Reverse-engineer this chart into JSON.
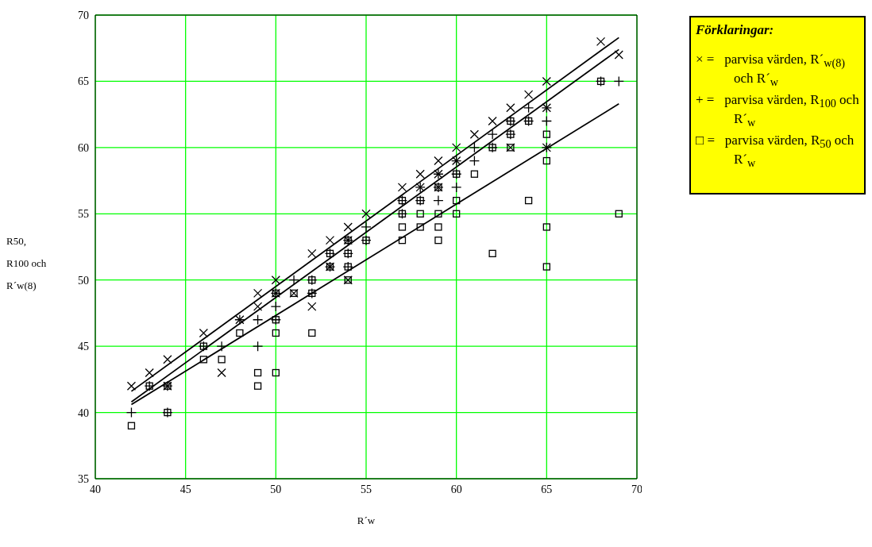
{
  "chart_data": {
    "type": "scatter",
    "xlabel": "R´w",
    "ylabel": "R50,\nR100 och\nR´w(8)",
    "grid": true,
    "annotations": [
      "Förklaringar:",
      "× =   parvisa värden, R´$_{w(8)}$ och R´$_{w}$",
      "+ =   parvisa värden, R$_{100}$ och R´$_{w}$",
      "□ =   parvisa värden, R$_{50}$ och R´$_{w}$"
    ],
    "xlim": [
      40,
      70
    ],
    "xticks": [
      40,
      45,
      50,
      55,
      60,
      65,
      70
    ],
    "ylim": [
      35,
      70
    ],
    "yticks": [
      35,
      40,
      45,
      50,
      55,
      60,
      65,
      70
    ],
    "series": [
      {
        "color": "#000000",
        "marker": "x",
        "x": [
          42,
          43,
          44,
          44,
          46,
          47,
          48,
          49,
          49,
          50,
          50,
          51,
          52,
          52,
          53,
          53,
          54,
          54,
          54,
          55,
          57,
          58,
          58,
          59,
          59,
          59,
          60,
          60,
          61,
          62,
          63,
          63,
          64,
          65,
          65,
          65,
          68,
          69
        ],
        "values": [
          42,
          43,
          44,
          42,
          46,
          43,
          47,
          49,
          48,
          50,
          49,
          49,
          52,
          48,
          53,
          51,
          54,
          53,
          50,
          55,
          57,
          58,
          57,
          59,
          58,
          57,
          60,
          59,
          61,
          62,
          63,
          60,
          64,
          65,
          63,
          60,
          68,
          67
        ]
      },
      {
        "color": "#000000",
        "marker": "cross",
        "x": [
          42,
          43,
          44,
          44,
          46,
          47,
          48,
          49,
          49,
          50,
          50,
          50,
          51,
          52,
          52,
          53,
          53,
          54,
          54,
          54,
          55,
          55,
          57,
          57,
          58,
          58,
          59,
          59,
          59,
          60,
          60,
          60,
          61,
          61,
          62,
          62,
          63,
          63,
          64,
          64,
          65,
          65,
          65,
          68,
          69
        ],
        "values": [
          40,
          42,
          42,
          40,
          45,
          45,
          47,
          47,
          45,
          49,
          48,
          47,
          50,
          50,
          49,
          52,
          51,
          53,
          52,
          51,
          54,
          53,
          56,
          55,
          57,
          56,
          58,
          57,
          56,
          59,
          58,
          57,
          60,
          59,
          61,
          60,
          62,
          61,
          63,
          62,
          63,
          62,
          60,
          65,
          65
        ]
      },
      {
        "color": "#000000",
        "marker": "square",
        "x": [
          42,
          43,
          44,
          44,
          46,
          46,
          47,
          48,
          49,
          49,
          50,
          50,
          50,
          50,
          51,
          52,
          52,
          52,
          53,
          53,
          54,
          54,
          54,
          54,
          55,
          57,
          57,
          57,
          57,
          58,
          58,
          58,
          59,
          59,
          59,
          59,
          60,
          60,
          60,
          61,
          62,
          62,
          63,
          63,
          63,
          64,
          64,
          65,
          65,
          65,
          65,
          68,
          69
        ],
        "values": [
          39,
          42,
          42,
          40,
          45,
          44,
          44,
          46,
          43,
          42,
          49,
          47,
          46,
          43,
          49,
          50,
          49,
          46,
          52,
          51,
          53,
          52,
          51,
          50,
          53,
          56,
          55,
          54,
          53,
          56,
          55,
          54,
          57,
          55,
          54,
          53,
          58,
          56,
          55,
          58,
          60,
          52,
          62,
          61,
          60,
          62,
          56,
          61,
          59,
          54,
          51,
          65,
          55
        ]
      },
      {
        "type": "line",
        "color": "#000000",
        "marker": "none",
        "x": [
          42,
          69
        ],
        "values": [
          41.6,
          68.3
        ]
      },
      {
        "type": "line",
        "color": "#000000",
        "marker": "none",
        "x": [
          42,
          69
        ],
        "values": [
          40.8,
          67.4
        ]
      },
      {
        "type": "line",
        "color": "#000000",
        "marker": "none",
        "x": [
          42,
          69
        ],
        "values": [
          40.6,
          63.3
        ]
      }
    ]
  }
}
